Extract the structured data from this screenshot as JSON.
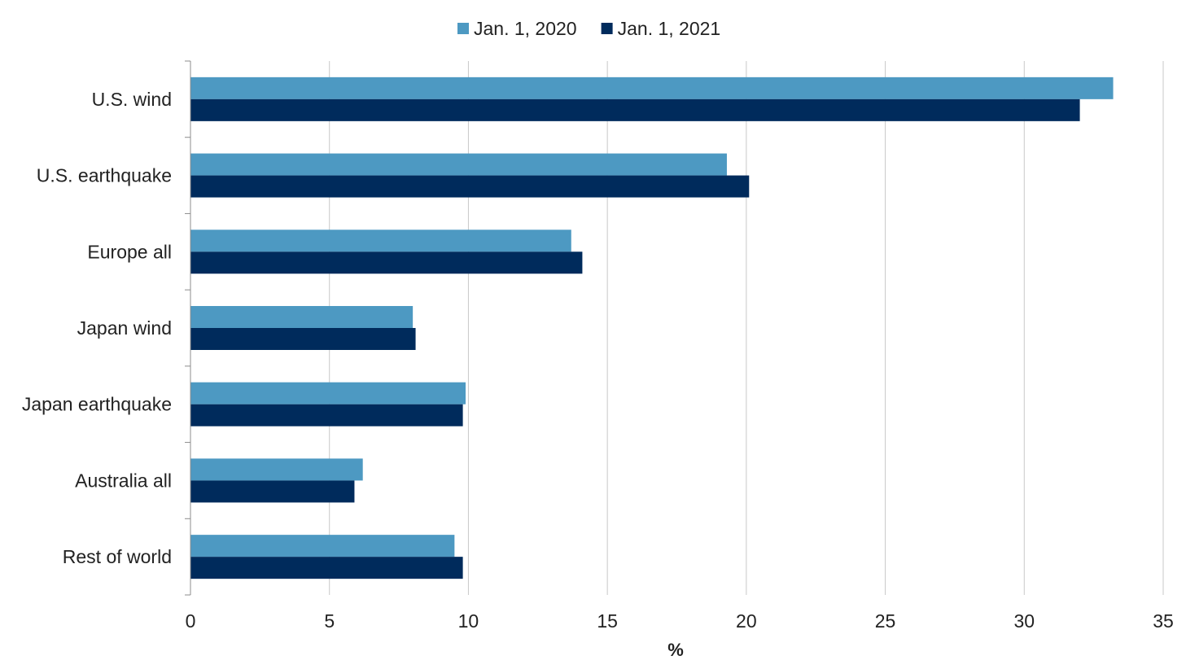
{
  "chart_data": {
    "type": "bar",
    "orientation": "horizontal",
    "categories": [
      "U.S. wind",
      "U.S. earthquake",
      "Europe all",
      "Japan wind",
      "Japan earthquake",
      "Australia all",
      "Rest of world"
    ],
    "series": [
      {
        "name": "Jan. 1, 2020",
        "color": "#4d99c2",
        "values": [
          33.2,
          19.3,
          13.7,
          8.0,
          9.9,
          6.2,
          9.5
        ]
      },
      {
        "name": "Jan. 1, 2021",
        "color": "#002b5c",
        "values": [
          32.0,
          20.1,
          14.1,
          8.1,
          9.8,
          5.9,
          9.8
        ]
      }
    ],
    "xlabel": "%",
    "ylabel": "",
    "xlim": [
      0,
      35
    ],
    "xticks": [
      0,
      5,
      10,
      15,
      20,
      25,
      30,
      35
    ],
    "xtick_labels": [
      "0",
      "5",
      "10",
      "15",
      "20",
      "25",
      "30",
      "35"
    ],
    "grid": "vertical",
    "legend_position": "top-center"
  }
}
